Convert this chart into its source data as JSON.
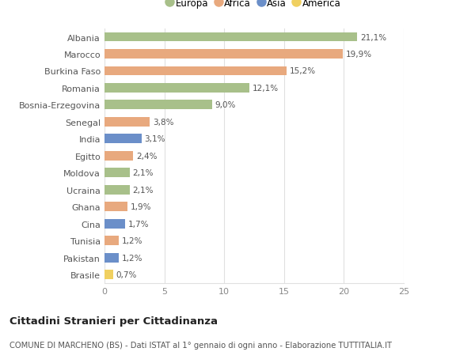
{
  "countries": [
    "Albania",
    "Marocco",
    "Burkina Faso",
    "Romania",
    "Bosnia-Erzegovina",
    "Senegal",
    "India",
    "Egitto",
    "Moldova",
    "Ucraina",
    "Ghana",
    "Cina",
    "Tunisia",
    "Pakistan",
    "Brasile"
  ],
  "values": [
    21.1,
    19.9,
    15.2,
    12.1,
    9.0,
    3.8,
    3.1,
    2.4,
    2.1,
    2.1,
    1.9,
    1.7,
    1.2,
    1.2,
    0.7
  ],
  "labels": [
    "21,1%",
    "19,9%",
    "15,2%",
    "12,1%",
    "9,0%",
    "3,8%",
    "3,1%",
    "2,4%",
    "2,1%",
    "2,1%",
    "1,9%",
    "1,7%",
    "1,2%",
    "1,2%",
    "0,7%"
  ],
  "continents": [
    "Europa",
    "Africa",
    "Africa",
    "Europa",
    "Europa",
    "Africa",
    "Asia",
    "Africa",
    "Europa",
    "Europa",
    "Africa",
    "Asia",
    "Africa",
    "Asia",
    "America"
  ],
  "continent_colors": {
    "Europa": "#a8c08a",
    "Africa": "#e8a97e",
    "Asia": "#6b8fc9",
    "America": "#f0d060"
  },
  "legend_order": [
    "Europa",
    "Africa",
    "Asia",
    "America"
  ],
  "title": "Cittadini Stranieri per Cittadinanza",
  "subtitle": "COMUNE DI MARCHENO (BS) - Dati ISTAT al 1° gennaio di ogni anno - Elaborazione TUTTITALIA.IT",
  "xlim": [
    0,
    25
  ],
  "xticks": [
    0,
    5,
    10,
    15,
    20,
    25
  ],
  "background_color": "#ffffff",
  "grid_color": "#e0e0e0",
  "bar_height": 0.55
}
